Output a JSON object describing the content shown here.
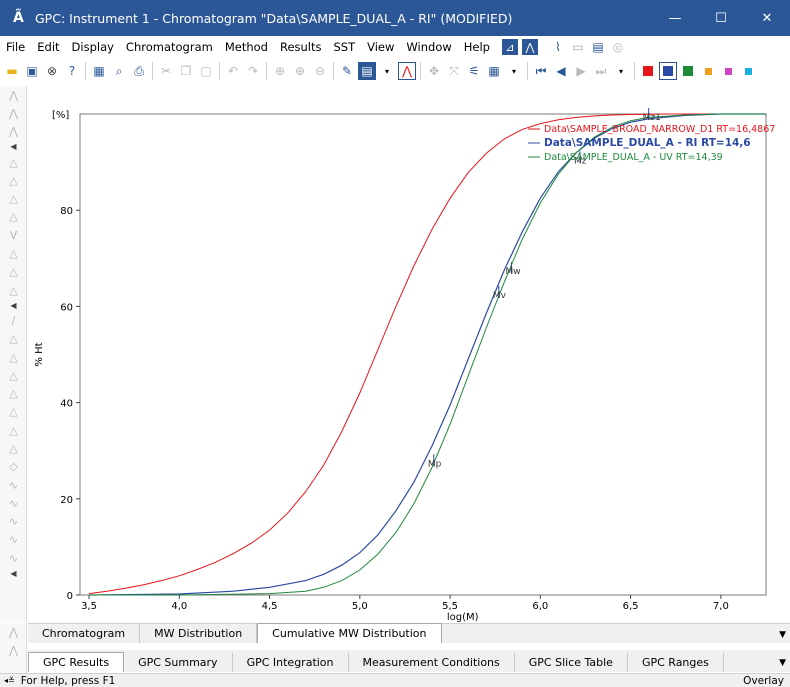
{
  "window": {
    "title": "GPC: Instrument 1 - Chromatogram \"Data\\SAMPLE_DUAL_A - RI\" (MODIFIED)",
    "app_icon_glyph": "Ã",
    "minimize_glyph": "—",
    "maximize_glyph": "☐",
    "close_glyph": "✕"
  },
  "menu": [
    {
      "label": "File"
    },
    {
      "label": "Edit"
    },
    {
      "label": "Display"
    },
    {
      "label": "Chromatogram"
    },
    {
      "label": "Method"
    },
    {
      "label": "Results"
    },
    {
      "label": "SST"
    },
    {
      "label": "View"
    },
    {
      "label": "Window"
    },
    {
      "label": "Help"
    }
  ],
  "menu_tools": [
    "calibration-icon",
    "peak-icon",
    "chart-icon",
    "window-icon",
    "report-icon",
    "settings-icon"
  ],
  "toolbar": {
    "icons": [
      "open-folder-icon",
      "save-icon",
      "close-icon",
      "help-icon",
      "export-image-icon",
      "print-preview-icon",
      "print-icon",
      "cut-icon",
      "copy-icon",
      "paste-icon",
      "undo-icon",
      "redo-icon",
      "zoom-icon",
      "zoom-in-icon",
      "zoom-out-icon",
      "tools-icon",
      "overlay-icon",
      "peak-view-icon",
      "move-icon",
      "fit-icon",
      "integration-icon",
      "calculator-icon",
      "first-icon",
      "previous-icon",
      "next-icon",
      "last-icon",
      "color-red",
      "color-blue",
      "color-green",
      "color-orange",
      "color-magenta",
      "color-cyan"
    ],
    "colors": {
      "red": "#e8141b",
      "blue": "#2b4aa3",
      "green": "#1f8a3a",
      "orange": "#f0a01a",
      "magenta": "#d040c0",
      "cyan": "#18b0e0"
    }
  },
  "chart_data": {
    "type": "line",
    "title": "",
    "xlabel": "log(M)",
    "ylabel": "% Ht",
    "y_unit_label": "[%]",
    "xlim": [
      3.45,
      7.25
    ],
    "ylim": [
      0,
      100
    ],
    "x_ticks": [
      "3,5",
      "4,0",
      "4,5",
      "5,0",
      "5,5",
      "6,0",
      "6,5",
      "7,0"
    ],
    "x_tick_values": [
      3.5,
      4.0,
      4.5,
      5.0,
      5.5,
      6.0,
      6.5,
      7.0
    ],
    "y_ticks": [
      "0",
      "20",
      "40",
      "60",
      "80"
    ],
    "y_tick_values": [
      0,
      20,
      40,
      60,
      80
    ],
    "legend_position": "top-right",
    "series": [
      {
        "name": "Data\\SAMPLE_BROAD_NARROW_D1 RT=16,4867",
        "color": "#e8141b",
        "bold": false,
        "x": [
          3.5,
          3.6,
          3.7,
          3.8,
          3.9,
          4.0,
          4.1,
          4.2,
          4.3,
          4.4,
          4.5,
          4.6,
          4.7,
          4.8,
          4.9,
          5.0,
          5.1,
          5.2,
          5.3,
          5.4,
          5.5,
          5.6,
          5.7,
          5.8,
          5.9,
          6.0,
          6.1,
          6.2,
          6.3,
          6.4,
          6.5,
          6.7,
          6.9,
          7.2
        ],
        "y": [
          0.3,
          0.8,
          1.4,
          2.1,
          3.0,
          4.0,
          5.3,
          6.8,
          8.6,
          10.8,
          13.5,
          17.0,
          21.5,
          27.0,
          34.0,
          42.0,
          51.0,
          60.0,
          68.5,
          76.0,
          82.5,
          87.8,
          91.8,
          94.8,
          96.8,
          98.0,
          98.8,
          99.3,
          99.6,
          99.8,
          99.9,
          100,
          100,
          100
        ]
      },
      {
        "name": "Data\\SAMPLE_DUAL_A - RI RT=14,6",
        "color": "#2b4aa3",
        "bold": true,
        "x": [
          3.5,
          4.0,
          4.3,
          4.5,
          4.7,
          4.8,
          4.9,
          5.0,
          5.1,
          5.2,
          5.3,
          5.4,
          5.5,
          5.6,
          5.7,
          5.8,
          5.9,
          6.0,
          6.1,
          6.2,
          6.3,
          6.4,
          6.5,
          6.6,
          6.8,
          7.0,
          7.25
        ],
        "y": [
          0,
          0.2,
          0.8,
          1.6,
          3.0,
          4.3,
          6.2,
          8.8,
          12.5,
          17.5,
          23.5,
          31.0,
          39.5,
          49.0,
          58.5,
          67.5,
          75.5,
          82.5,
          88.0,
          92.0,
          95.0,
          97.0,
          98.3,
          99.0,
          99.7,
          100,
          100
        ]
      },
      {
        "name": "Data\\SAMPLE_DUAL_A - UV RT=14,39",
        "color": "#1f8a3a",
        "bold": false,
        "x": [
          3.5,
          4.0,
          4.5,
          4.7,
          4.8,
          4.9,
          5.0,
          5.1,
          5.2,
          5.3,
          5.4,
          5.5,
          5.6,
          5.7,
          5.8,
          5.9,
          6.0,
          6.1,
          6.2,
          6.3,
          6.4,
          6.5,
          6.6,
          6.8,
          7.0,
          7.25
        ],
        "y": [
          0,
          0,
          0.3,
          0.8,
          1.6,
          3.0,
          5.2,
          8.5,
          13.0,
          19.0,
          26.5,
          35.5,
          45.5,
          55.5,
          65.0,
          74.0,
          81.5,
          87.5,
          92.0,
          95.2,
          97.3,
          98.6,
          99.3,
          99.8,
          100,
          100
        ]
      }
    ],
    "annotations": [
      {
        "label": "Mp",
        "x": 5.41,
        "y": 28
      },
      {
        "label": "Mv",
        "x": 5.77,
        "y": 63
      },
      {
        "label": "Mw",
        "x": 5.84,
        "y": 68
      },
      {
        "label": "Mz",
        "x": 6.22,
        "y": 91
      },
      {
        "label": "Mz1",
        "x": 6.6,
        "y": 100
      }
    ]
  },
  "tabs_top": [
    {
      "label": "Chromatogram",
      "active": false
    },
    {
      "label": "MW Distribution",
      "active": false
    },
    {
      "label": "Cumulative MW Distribution",
      "active": true
    }
  ],
  "tabs_bottom": [
    {
      "label": "GPC Results",
      "active": true
    },
    {
      "label": "GPC Summary",
      "active": false
    },
    {
      "label": "GPC Integration",
      "active": false
    },
    {
      "label": "Measurement Conditions",
      "active": false
    },
    {
      "label": "GPC Slice Table",
      "active": false
    },
    {
      "label": "GPC Ranges",
      "active": false
    }
  ],
  "status": {
    "help_text": "For Help, press F1",
    "mode": "Overlay"
  }
}
